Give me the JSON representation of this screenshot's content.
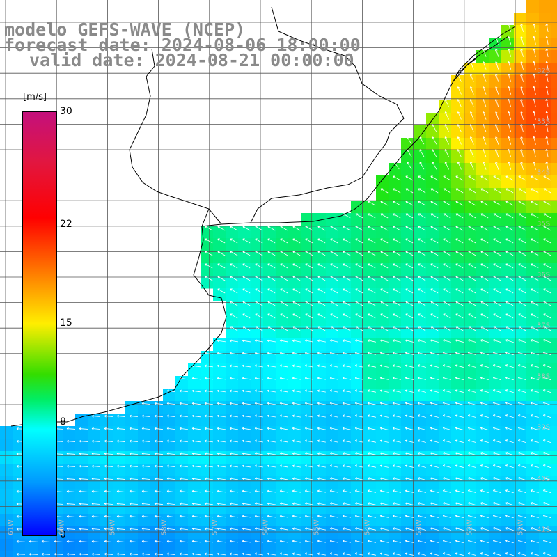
{
  "title": {
    "line1": "modelo GEFS-WAVE (NCEP)",
    "line2": "forecast date: 2024-08-06 18:00:00",
    "line3": "valid date: 2024-08-21 00:00:00"
  },
  "colorbar": {
    "unit": "[m/s]",
    "ticks": [
      {
        "label": "30",
        "value": 30
      },
      {
        "label": "22",
        "value": 22
      },
      {
        "label": "15",
        "value": 15
      },
      {
        "label": "8",
        "value": 8
      },
      {
        "label": "0",
        "value": 0
      }
    ],
    "colors": [
      "#0000ff",
      "#00ffff",
      "#33dd00",
      "#ffee00",
      "#ff0000",
      "#c4107c"
    ]
  },
  "lat_labels": [
    "32S",
    "33S",
    "34S",
    "35S",
    "36S",
    "37S",
    "38S",
    "39S",
    "40S",
    "41S"
  ],
  "lon_labels": [
    "61W",
    "60W",
    "59W",
    "58W",
    "57W",
    "56W",
    "55W",
    "54W",
    "53W",
    "52W",
    "51W"
  ],
  "colors": {
    "land": "#ffffff",
    "grid": "#555555",
    "coast": "#000000",
    "arrow": "#ffffff",
    "title": "#8a8a8a"
  }
}
